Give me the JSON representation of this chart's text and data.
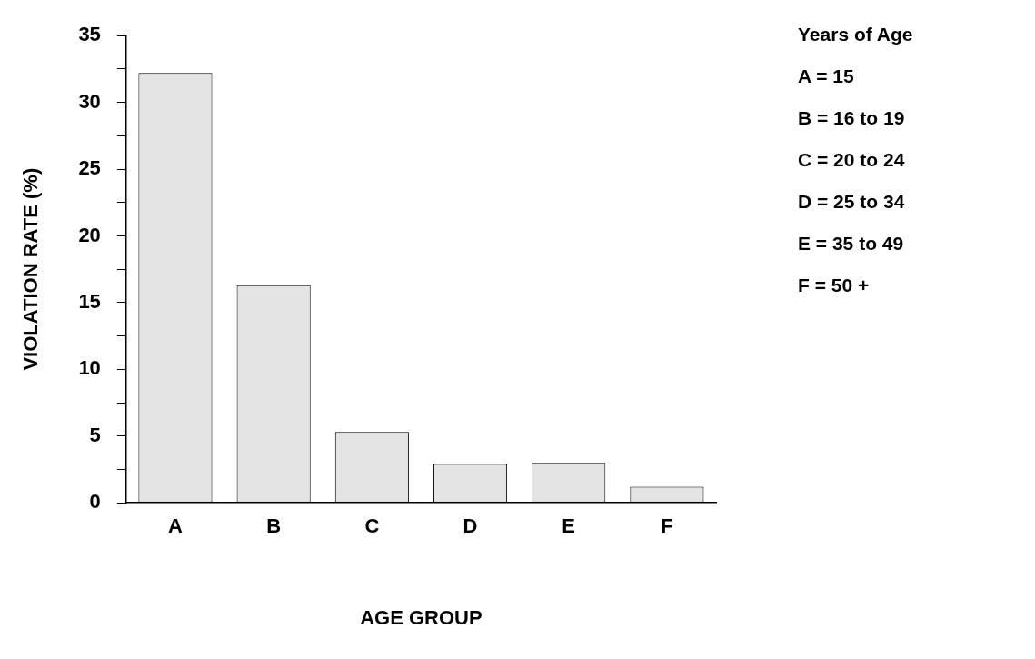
{
  "chart_data": {
    "type": "bar",
    "xlabel": "AGE GROUP",
    "ylabel": "VIOLATION RATE (%)",
    "categories": [
      "A",
      "B",
      "C",
      "D",
      "E",
      "F"
    ],
    "values": [
      32.2,
      16.3,
      5.3,
      2.9,
      3.0,
      1.2
    ],
    "color": "#e4e4e4",
    "ylim": [
      0,
      35
    ],
    "yticks": [
      0,
      {
        "value": 2.5,
        "label": null
      },
      5,
      {
        "value": 7.5,
        "label": null
      },
      10,
      {
        "value": 12.5,
        "label": null
      },
      15,
      {
        "value": 17.5,
        "label": null
      },
      20,
      {
        "value": 22.5,
        "label": null
      },
      25,
      {
        "value": 27.5,
        "label": null
      },
      30,
      {
        "value": 32.5,
        "label": null
      },
      35
    ],
    "grid": false,
    "legend": false,
    "annotations": [
      "Years of Age",
      "A = 15",
      "B = 16 to 19",
      "C = 20 to 24",
      "D = 25 to 34",
      "E = 35 to 49",
      "F = 50 +"
    ]
  }
}
